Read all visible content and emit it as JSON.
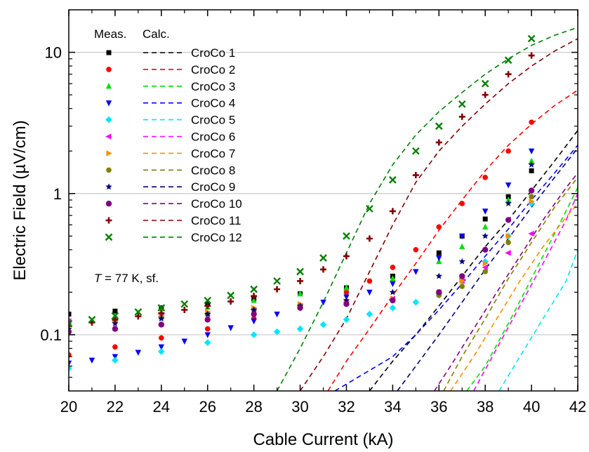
{
  "chart_data": {
    "type": "scatter",
    "title": "",
    "xlabel": "Cable Current (kA)",
    "ylabel": "Electric Field (µV/cm)",
    "xlim": [
      20,
      42
    ],
    "ylim": [
      0.04,
      20
    ],
    "yscale": "log",
    "x_ticks": [
      "20",
      "22",
      "24",
      "26",
      "28",
      "30",
      "32",
      "34",
      "36",
      "38",
      "40",
      "42"
    ],
    "y_ticks": [
      {
        "value": 0.1,
        "label": "0.1"
      },
      {
        "value": 1,
        "label": "1"
      },
      {
        "value": 10,
        "label": "10"
      }
    ],
    "grid": "horizontal at 0.1, 1, 10",
    "legend": {
      "position": "top-left",
      "header_measured": "Meas.",
      "header_calculated": "Calc."
    },
    "annotation": {
      "italic": "T",
      "rest": " = 77 K, sf."
    },
    "series": [
      {
        "name": "CroCo 1",
        "color": "#000000",
        "marker": "square",
        "measured": [
          [
            20,
            0.14
          ],
          [
            22,
            0.147
          ],
          [
            24,
            0.155
          ],
          [
            26,
            0.165
          ],
          [
            28,
            0.18
          ],
          [
            30,
            0.195
          ],
          [
            32,
            0.215
          ],
          [
            34,
            0.26
          ],
          [
            36,
            0.38
          ],
          [
            37,
            0.5
          ],
          [
            38,
            0.66
          ],
          [
            39,
            0.95
          ],
          [
            40,
            1.45
          ]
        ],
        "calculated": [
          [
            33,
            0.04
          ],
          [
            34,
            0.065
          ],
          [
            35,
            0.1
          ],
          [
            36,
            0.16
          ],
          [
            37,
            0.26
          ],
          [
            38,
            0.42
          ],
          [
            39,
            0.65
          ],
          [
            40,
            1.05
          ],
          [
            41,
            1.7
          ],
          [
            42,
            2.8
          ]
        ]
      },
      {
        "name": "CroCo 2",
        "color": "#ff0000",
        "marker": "circle",
        "measured": [
          [
            20,
            0.072
          ],
          [
            22,
            0.082
          ],
          [
            24,
            0.095
          ],
          [
            26,
            0.11
          ],
          [
            28,
            0.13
          ],
          [
            30,
            0.16
          ],
          [
            32,
            0.2
          ],
          [
            33,
            0.24
          ],
          [
            34,
            0.3
          ],
          [
            35,
            0.4
          ],
          [
            36,
            0.58
          ],
          [
            37,
            0.85
          ],
          [
            38,
            1.3
          ],
          [
            39,
            2.0
          ],
          [
            40,
            3.2
          ]
        ],
        "calculated": [
          [
            31.2,
            0.04
          ],
          [
            32,
            0.065
          ],
          [
            33,
            0.11
          ],
          [
            34,
            0.19
          ],
          [
            35,
            0.32
          ],
          [
            36,
            0.55
          ],
          [
            37,
            0.9
          ],
          [
            38,
            1.45
          ],
          [
            39,
            2.2
          ],
          [
            40,
            3.1
          ],
          [
            41,
            4.2
          ],
          [
            42,
            5.4
          ]
        ]
      },
      {
        "name": "CroCo 3",
        "color": "#00e000",
        "marker": "triangle-up",
        "measured": [
          [
            20,
            0.125
          ],
          [
            22,
            0.135
          ],
          [
            24,
            0.145
          ],
          [
            26,
            0.157
          ],
          [
            28,
            0.175
          ],
          [
            30,
            0.195
          ],
          [
            32,
            0.215
          ],
          [
            34,
            0.25
          ],
          [
            36,
            0.33
          ],
          [
            37,
            0.42
          ],
          [
            38,
            0.58
          ],
          [
            39,
            0.9
          ],
          [
            40,
            1.7
          ]
        ],
        "calculated": [
          [
            37.2,
            0.04
          ],
          [
            38,
            0.06
          ],
          [
            39,
            0.12
          ],
          [
            40,
            0.25
          ],
          [
            41,
            0.52
          ],
          [
            42,
            1.1
          ]
        ]
      },
      {
        "name": "CroCo 4",
        "color": "#0000ff",
        "marker": "triangle-down",
        "measured": [
          [
            20,
            0.063
          ],
          [
            21,
            0.066
          ],
          [
            22,
            0.07
          ],
          [
            23,
            0.075
          ],
          [
            24,
            0.082
          ],
          [
            25,
            0.09
          ],
          [
            26,
            0.1
          ],
          [
            27,
            0.112
          ],
          [
            28,
            0.125
          ],
          [
            29,
            0.14
          ],
          [
            30,
            0.155
          ],
          [
            31,
            0.17
          ],
          [
            32,
            0.185
          ],
          [
            33,
            0.2
          ],
          [
            34,
            0.23
          ],
          [
            35,
            0.28
          ],
          [
            36,
            0.35
          ],
          [
            37,
            0.5
          ],
          [
            38,
            0.75
          ],
          [
            39,
            1.15
          ],
          [
            40,
            2.0
          ]
        ],
        "calculated": [
          [
            31.5,
            0.04
          ],
          [
            32.5,
            0.05
          ],
          [
            34,
            0.07
          ],
          [
            35,
            0.1
          ],
          [
            36,
            0.15
          ],
          [
            37,
            0.23
          ],
          [
            38,
            0.36
          ],
          [
            39,
            0.56
          ],
          [
            40,
            0.9
          ],
          [
            41,
            1.4
          ],
          [
            42,
            2.2
          ]
        ]
      },
      {
        "name": "CroCo 5",
        "color": "#00e5ff",
        "marker": "diamond",
        "measured": [
          [
            20,
            0.058
          ],
          [
            22,
            0.066
          ],
          [
            24,
            0.076
          ],
          [
            26,
            0.088
          ],
          [
            28,
            0.1
          ],
          [
            29,
            0.105
          ],
          [
            30,
            0.11
          ],
          [
            31,
            0.118
          ],
          [
            32,
            0.128
          ],
          [
            33,
            0.14
          ],
          [
            34,
            0.155
          ],
          [
            35,
            0.17
          ],
          [
            36,
            0.195
          ],
          [
            37,
            0.24
          ],
          [
            38,
            0.33
          ],
          [
            39,
            0.5
          ],
          [
            40,
            0.85
          ]
        ],
        "calculated": [
          [
            38.6,
            0.04
          ],
          [
            39.5,
            0.07
          ],
          [
            40.5,
            0.13
          ],
          [
            41.5,
            0.24
          ],
          [
            42,
            0.4
          ]
        ]
      },
      {
        "name": "CroCo 6",
        "color": "#ff00ff",
        "marker": "triangle-left",
        "measured": [
          [
            20,
            0.125
          ],
          [
            22,
            0.13
          ],
          [
            24,
            0.135
          ],
          [
            26,
            0.14
          ],
          [
            28,
            0.15
          ],
          [
            30,
            0.16
          ],
          [
            32,
            0.17
          ],
          [
            34,
            0.18
          ],
          [
            36,
            0.2
          ],
          [
            37,
            0.24
          ],
          [
            38,
            0.3
          ],
          [
            39,
            0.38
          ],
          [
            40,
            0.52
          ]
        ],
        "calculated": [
          [
            37.5,
            0.04
          ],
          [
            38.5,
            0.08
          ],
          [
            39.5,
            0.16
          ],
          [
            40.5,
            0.32
          ],
          [
            41.5,
            0.65
          ],
          [
            42,
            1.0
          ]
        ]
      },
      {
        "name": "CroCo 7",
        "color": "#ff8c00",
        "marker": "triangle-right",
        "measured": [
          [
            20,
            0.12
          ],
          [
            22,
            0.128
          ],
          [
            24,
            0.135
          ],
          [
            26,
            0.145
          ],
          [
            28,
            0.155
          ],
          [
            30,
            0.165
          ],
          [
            32,
            0.172
          ],
          [
            34,
            0.18
          ],
          [
            36,
            0.2
          ],
          [
            37,
            0.24
          ],
          [
            38,
            0.32
          ],
          [
            39,
            0.5
          ],
          [
            40,
            0.88
          ]
        ],
        "calculated": [
          [
            36.5,
            0.04
          ],
          [
            37.5,
            0.07
          ],
          [
            38.5,
            0.13
          ],
          [
            39.5,
            0.24
          ],
          [
            40.5,
            0.42
          ],
          [
            41.5,
            0.68
          ],
          [
            42,
            0.85
          ]
        ]
      },
      {
        "name": "CroCo 8",
        "color": "#808000",
        "marker": "circle",
        "measured": [
          [
            20,
            0.118
          ],
          [
            22,
            0.125
          ],
          [
            24,
            0.132
          ],
          [
            26,
            0.14
          ],
          [
            28,
            0.15
          ],
          [
            30,
            0.16
          ],
          [
            32,
            0.167
          ],
          [
            34,
            0.175
          ],
          [
            36,
            0.19
          ],
          [
            37,
            0.22
          ],
          [
            38,
            0.28
          ],
          [
            39,
            0.45
          ],
          [
            40,
            0.95
          ]
        ],
        "calculated": [
          [
            36.2,
            0.04
          ],
          [
            37,
            0.07
          ],
          [
            38,
            0.13
          ],
          [
            39,
            0.25
          ],
          [
            40,
            0.45
          ],
          [
            41,
            0.8
          ],
          [
            42,
            1.3
          ]
        ]
      },
      {
        "name": "CroCo 9",
        "color": "#000080",
        "marker": "star",
        "measured": [
          [
            20,
            0.11
          ],
          [
            22,
            0.12
          ],
          [
            24,
            0.13
          ],
          [
            26,
            0.14
          ],
          [
            28,
            0.15
          ],
          [
            30,
            0.16
          ],
          [
            32,
            0.175
          ],
          [
            34,
            0.2
          ],
          [
            36,
            0.26
          ],
          [
            37,
            0.33
          ],
          [
            38,
            0.5
          ],
          [
            39,
            0.85
          ],
          [
            40,
            1.6
          ]
        ],
        "calculated": [
          [
            34.2,
            0.04
          ],
          [
            35,
            0.06
          ],
          [
            36,
            0.1
          ],
          [
            37,
            0.17
          ],
          [
            38,
            0.29
          ],
          [
            39,
            0.48
          ],
          [
            40,
            0.8
          ],
          [
            41,
            1.3
          ],
          [
            42,
            2.1
          ]
        ]
      },
      {
        "name": "CroCo 10",
        "color": "#800080",
        "marker": "hexagon",
        "measured": [
          [
            20,
            0.105
          ],
          [
            22,
            0.11
          ],
          [
            24,
            0.118
          ],
          [
            26,
            0.128
          ],
          [
            28,
            0.14
          ],
          [
            30,
            0.155
          ],
          [
            32,
            0.165
          ],
          [
            34,
            0.175
          ],
          [
            36,
            0.2
          ],
          [
            37,
            0.26
          ],
          [
            38,
            0.4
          ],
          [
            39,
            0.65
          ],
          [
            40,
            1.05
          ]
        ],
        "calculated": [
          [
            35.8,
            0.04
          ],
          [
            36.5,
            0.06
          ],
          [
            37.5,
            0.11
          ],
          [
            38.5,
            0.2
          ],
          [
            39.5,
            0.36
          ],
          [
            40.5,
            0.65
          ],
          [
            41.5,
            1.1
          ],
          [
            42,
            1.4
          ]
        ]
      },
      {
        "name": "CroCo 11",
        "color": "#800000",
        "marker": "plus",
        "measured": [
          [
            20,
            0.115
          ],
          [
            21,
            0.122
          ],
          [
            22,
            0.128
          ],
          [
            23,
            0.135
          ],
          [
            24,
            0.142
          ],
          [
            25,
            0.15
          ],
          [
            26,
            0.16
          ],
          [
            27,
            0.172
          ],
          [
            28,
            0.188
          ],
          [
            29,
            0.21
          ],
          [
            30,
            0.24
          ],
          [
            31,
            0.29
          ],
          [
            32,
            0.36
          ],
          [
            33,
            0.48
          ],
          [
            34,
            0.75
          ],
          [
            35,
            1.35
          ],
          [
            36,
            2.3
          ],
          [
            37,
            3.5
          ],
          [
            38,
            5.0
          ],
          [
            39,
            7.0
          ],
          [
            40,
            9.5
          ]
        ],
        "calculated": [
          [
            30,
            0.04
          ],
          [
            31,
            0.07
          ],
          [
            32,
            0.13
          ],
          [
            33,
            0.28
          ],
          [
            34,
            0.6
          ],
          [
            35,
            1.2
          ],
          [
            36,
            2.0
          ],
          [
            37,
            3.0
          ],
          [
            38,
            4.3
          ],
          [
            39,
            6.0
          ],
          [
            40,
            8.0
          ],
          [
            41,
            10.2
          ],
          [
            42,
            12.5
          ]
        ]
      },
      {
        "name": "CroCo 12",
        "color": "#008000",
        "marker": "x",
        "measured": [
          [
            20,
            0.12
          ],
          [
            21,
            0.128
          ],
          [
            22,
            0.136
          ],
          [
            23,
            0.145
          ],
          [
            24,
            0.155
          ],
          [
            25,
            0.165
          ],
          [
            26,
            0.175
          ],
          [
            27,
            0.19
          ],
          [
            28,
            0.21
          ],
          [
            29,
            0.24
          ],
          [
            30,
            0.28
          ],
          [
            31,
            0.35
          ],
          [
            32,
            0.5
          ],
          [
            33,
            0.78
          ],
          [
            34,
            1.25
          ],
          [
            35,
            2.0
          ],
          [
            36,
            3.0
          ],
          [
            37,
            4.3
          ],
          [
            38,
            6.0
          ],
          [
            39,
            8.8
          ],
          [
            40,
            12.5
          ]
        ],
        "calculated": [
          [
            29,
            0.04
          ],
          [
            30,
            0.08
          ],
          [
            31,
            0.17
          ],
          [
            32,
            0.38
          ],
          [
            33,
            0.85
          ],
          [
            34,
            1.6
          ],
          [
            35,
            2.6
          ],
          [
            36,
            3.8
          ],
          [
            37,
            5.2
          ],
          [
            38,
            7.0
          ],
          [
            39,
            9.0
          ],
          [
            40,
            11.2
          ],
          [
            41,
            13.2
          ],
          [
            42,
            15.0
          ]
        ]
      }
    ]
  }
}
